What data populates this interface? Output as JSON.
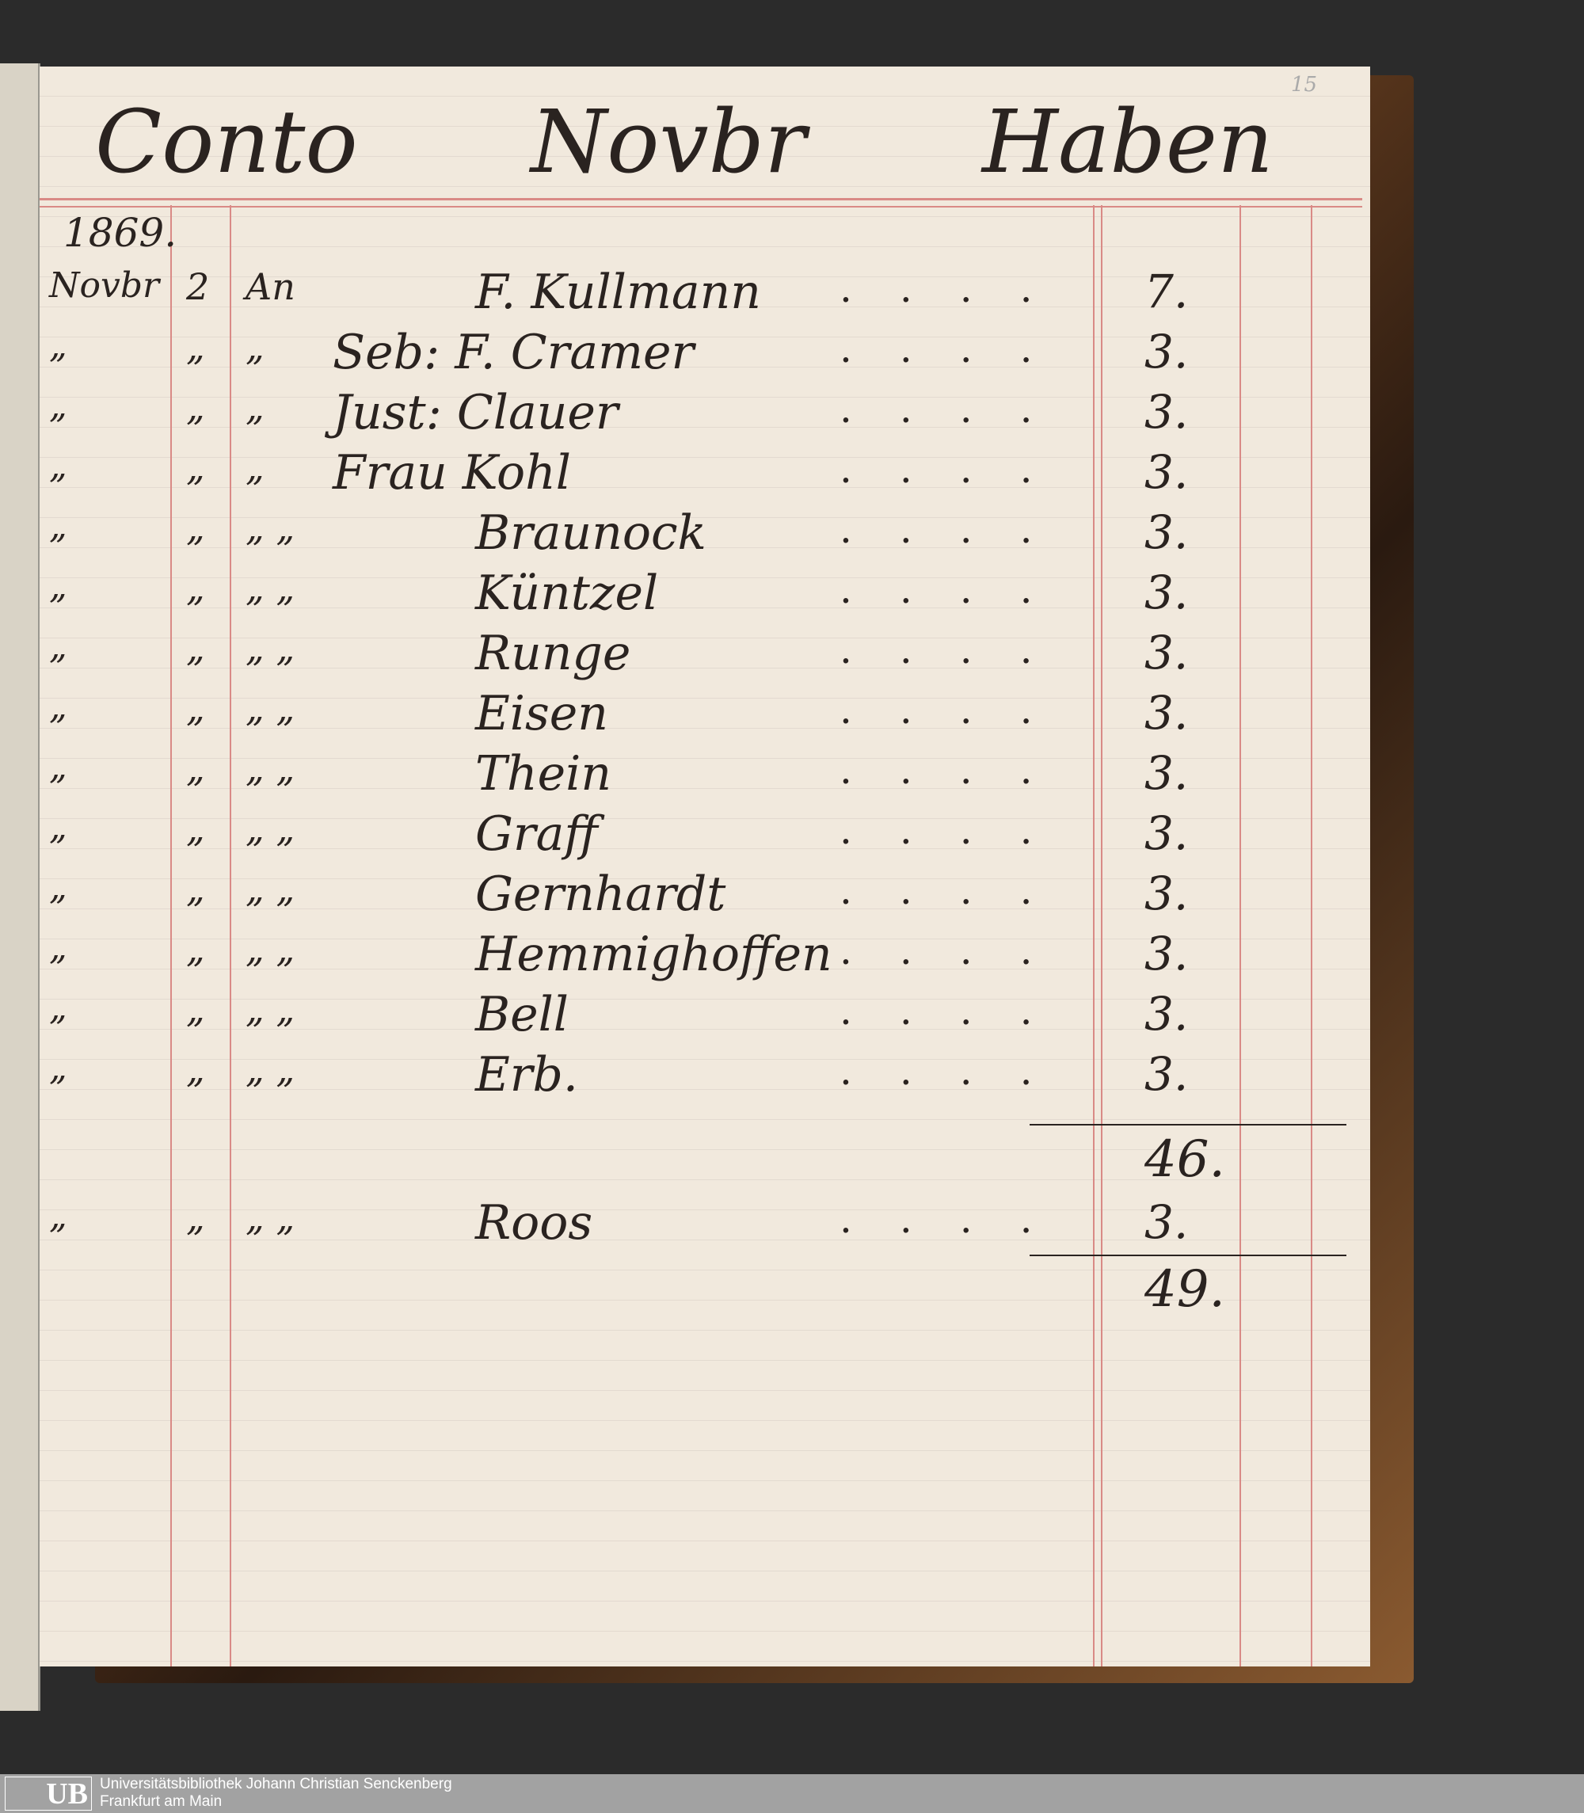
{
  "header": {
    "left": "Conto",
    "center": "Novbr",
    "right": "Haben",
    "page_number": "15"
  },
  "year": "1869.",
  "rows": [
    {
      "month": "Novbr",
      "day": "2",
      "prefix": "An",
      "name": "F. Kullmann",
      "amount": "7."
    },
    {
      "month": "„",
      "day": "„",
      "prefix": "„",
      "name": "Seb: F. Cramer",
      "amount": "3."
    },
    {
      "month": "„",
      "day": "„",
      "prefix": "„",
      "name": "Just: Clauer",
      "amount": "3."
    },
    {
      "month": "„",
      "day": "„",
      "prefix": "„",
      "name": "Frau Kohl",
      "amount": "3."
    },
    {
      "month": "„",
      "day": "„",
      "prefix": "„ „",
      "name": "Braunock",
      "amount": "3."
    },
    {
      "month": "„",
      "day": "„",
      "prefix": "„ „",
      "name": "Küntzel",
      "amount": "3."
    },
    {
      "month": "„",
      "day": "„",
      "prefix": "„ „",
      "name": "Runge",
      "amount": "3."
    },
    {
      "month": "„",
      "day": "„",
      "prefix": "„ „",
      "name": "Eisen",
      "amount": "3."
    },
    {
      "month": "„",
      "day": "„",
      "prefix": "„ „",
      "name": "Thein",
      "amount": "3."
    },
    {
      "month": "„",
      "day": "„",
      "prefix": "„ „",
      "name": "Graff",
      "amount": "3."
    },
    {
      "month": "„",
      "day": "„",
      "prefix": "„ „",
      "name": "Gernhardt",
      "amount": "3."
    },
    {
      "month": "„",
      "day": "„",
      "prefix": "„ „",
      "name": "Hemmighoffen",
      "amount": "3."
    },
    {
      "month": "„",
      "day": "„",
      "prefix": "„ „",
      "name": "Bell",
      "amount": "3."
    },
    {
      "month": "„",
      "day": "„",
      "prefix": "„ „",
      "name": "Erb.",
      "amount": "3."
    }
  ],
  "subtotal": "46.",
  "extra_row": {
    "month": "„",
    "day": "„",
    "prefix": "„ „",
    "name": "Roos",
    "amount": "3."
  },
  "total": "49.",
  "footer": {
    "logo": "UB",
    "line1": "Universitätsbibliothek Johann Christian Senckenberg",
    "line2": "Frankfurt am Main"
  }
}
